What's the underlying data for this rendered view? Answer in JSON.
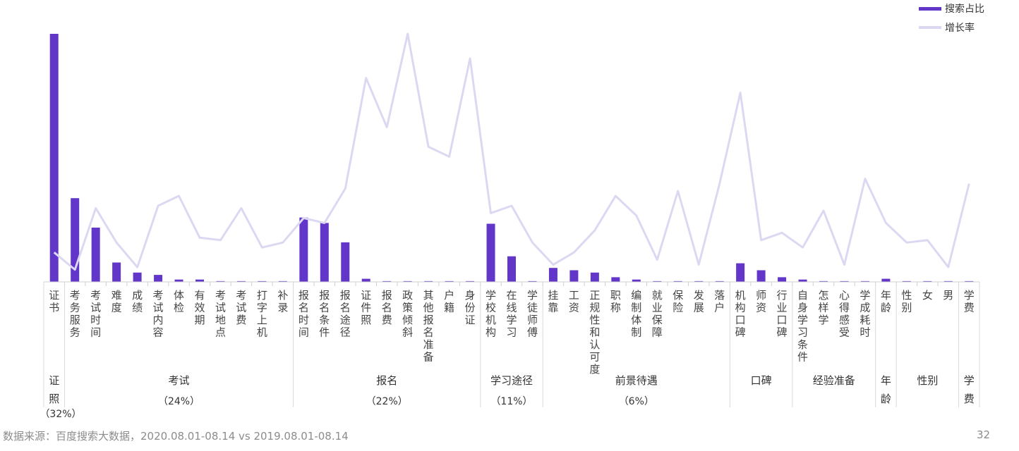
{
  "chart_data": {
    "type": "bar",
    "categories": [
      "证书",
      "考务服务",
      "考试时间",
      "难度",
      "成绩",
      "考试内容",
      "体检",
      "有效期",
      "考试地点",
      "考试费",
      "打字上机",
      "补录",
      "报名时间",
      "报名条件",
      "报名途径",
      "证件照",
      "报名费",
      "政策倾斜",
      "其他报名准备",
      "户籍",
      "身份证",
      "学校机构",
      "在线学习",
      "学徒师傅",
      "挂靠",
      "工资",
      "正规性和认可度",
      "职称",
      "编制体制",
      "就业保障",
      "保险",
      "发展",
      "落户",
      "机构口碑",
      "师资",
      "行业口碑",
      "自身学习条件",
      "怎样学",
      "心得感受",
      "学成耗时",
      "年龄",
      "性别",
      "女",
      "男",
      "学费"
    ],
    "series": [
      {
        "name": "搜索占比",
        "values": [
          32.0,
          10.8,
          7.0,
          2.5,
          1.2,
          0.9,
          0.3,
          0.3,
          0.1,
          0.1,
          0.1,
          0.1,
          8.3,
          7.6,
          5.1,
          0.4,
          0.1,
          0.1,
          0.1,
          0.1,
          0.1,
          7.5,
          3.3,
          0.1,
          1.8,
          1.5,
          1.2,
          0.6,
          0.3,
          0.1,
          0.1,
          0.1,
          0.1,
          2.4,
          1.5,
          0.6,
          0.3,
          0.1,
          0.1,
          0.1,
          0.4,
          0.1,
          0.1,
          0.1,
          0.1
        ],
        "color": "#6236c8"
      },
      {
        "name": "增长率",
        "values": [
          12,
          5,
          30,
          16,
          6,
          31,
          35,
          18,
          17,
          30,
          14,
          16,
          26,
          24,
          38,
          83,
          63,
          101,
          55,
          51,
          91,
          28,
          31,
          16,
          7,
          12,
          21,
          35,
          27,
          9,
          37,
          7,
          40,
          77,
          17,
          20,
          14,
          29,
          7,
          42,
          24,
          16,
          17,
          6,
          40
        ],
        "color": "#ddd8f2"
      }
    ],
    "groups": [
      {
        "name": "证照",
        "share": "（32%）",
        "start": 0,
        "end": 0
      },
      {
        "name": "考试",
        "share": "（24%）",
        "start": 1,
        "end": 11
      },
      {
        "name": "报名",
        "share": "（22%）",
        "start": 12,
        "end": 20
      },
      {
        "name": "学习途径",
        "share": "（11%）",
        "start": 21,
        "end": 23
      },
      {
        "name": "前景待遇",
        "share": "（6%）",
        "start": 24,
        "end": 32
      },
      {
        "name": "口碑",
        "share": "",
        "start": 33,
        "end": 35
      },
      {
        "name": "经验准备",
        "share": "",
        "start": 36,
        "end": 39
      },
      {
        "name": "年龄",
        "share": "",
        "start": 40,
        "end": 40
      },
      {
        "name": "性别",
        "share": "",
        "start": 41,
        "end": 43
      },
      {
        "name": "学费",
        "share": "",
        "start": 44,
        "end": 44
      }
    ],
    "legend_position": "top-right",
    "grid": false
  },
  "footer": {
    "source": "数据来源：百度搜索大数据，2020.08.01-08.14 vs 2019.08.01-08.14",
    "page": "32"
  }
}
